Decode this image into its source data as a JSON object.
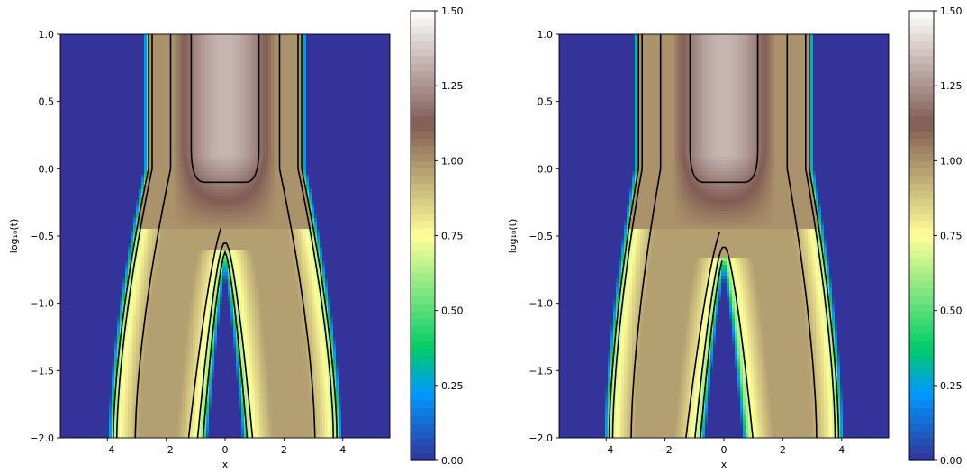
{
  "chart_data": [
    {
      "type": "heatmap",
      "panel": "left",
      "xlabel": "x",
      "ylabel": "log₁₀(t)",
      "xlim": [
        -5.6,
        5.6
      ],
      "ylim": [
        -2.0,
        1.0
      ],
      "xticks": [
        -4,
        -2,
        0,
        2,
        4
      ],
      "xtick_labels": [
        "−4",
        "−2",
        "0",
        "2",
        "4"
      ],
      "yticks": [
        1.0,
        0.5,
        0.0,
        -0.5,
        -1.0,
        -1.5,
        -2.0
      ],
      "ytick_labels": [
        "1.0",
        "0.5",
        "0.0",
        "−0.5",
        "−1.0",
        "−1.5",
        "−2.0"
      ],
      "colorbar": {
        "range": [
          0.0,
          1.5
        ],
        "ticks": [
          1.5,
          1.25,
          1.0,
          0.75,
          0.5,
          0.25,
          0.0
        ],
        "tick_labels": [
          "1.50",
          "1.25",
          "1.00",
          "0.75",
          "0.50",
          "0.25",
          "0.00"
        ],
        "colormap": "terrain"
      },
      "regions": {
        "background_value": 0.0,
        "outer_edge_x_at_top": 2.6,
        "outer_edge_x_at_bottom": 3.8,
        "central_gap_tip_log_t": -0.62,
        "central_gap_halfwidth_at_bottom": 0.75,
        "plateau_value": 1.3,
        "plateau_halfwidth": 1.15,
        "plateau_lower_edge_log_t": -0.1
      },
      "contour_levels": [
        0.5,
        0.75,
        1.0,
        1.25
      ]
    },
    {
      "type": "heatmap",
      "panel": "right",
      "xlabel": "x",
      "ylabel": "log₁₀(t)",
      "xlim": [
        -5.6,
        5.6
      ],
      "ylim": [
        -2.0,
        1.0
      ],
      "xticks": [
        -4,
        -2,
        0,
        2,
        4
      ],
      "xtick_labels": [
        "−4",
        "−2",
        "0",
        "2",
        "4"
      ],
      "yticks": [
        1.0,
        0.5,
        0.0,
        -0.5,
        -1.0,
        -1.5,
        -2.0
      ],
      "ytick_labels": [
        "1.0",
        "0.5",
        "0.0",
        "−0.5",
        "−1.0",
        "−1.5",
        "−2.0"
      ],
      "colorbar": {
        "range": [
          0.0,
          1.5
        ],
        "ticks": [
          1.5,
          1.25,
          1.0,
          0.75,
          0.5,
          0.25,
          0.0
        ],
        "tick_labels": [
          "1.50",
          "1.25",
          "1.00",
          "0.75",
          "0.50",
          "0.25",
          "0.00"
        ],
        "colormap": "terrain"
      },
      "regions": {
        "background_value": 0.0,
        "outer_edge_x_at_top": 2.9,
        "outer_edge_x_at_bottom": 3.9,
        "central_gap_tip_log_t": -0.65,
        "central_gap_halfwidth_at_bottom": 0.8,
        "plateau_value": 1.3,
        "plateau_halfwidth": 1.15,
        "plateau_lower_edge_log_t": -0.1
      },
      "contour_levels": [
        0.5,
        0.75,
        1.0,
        1.25
      ]
    }
  ]
}
